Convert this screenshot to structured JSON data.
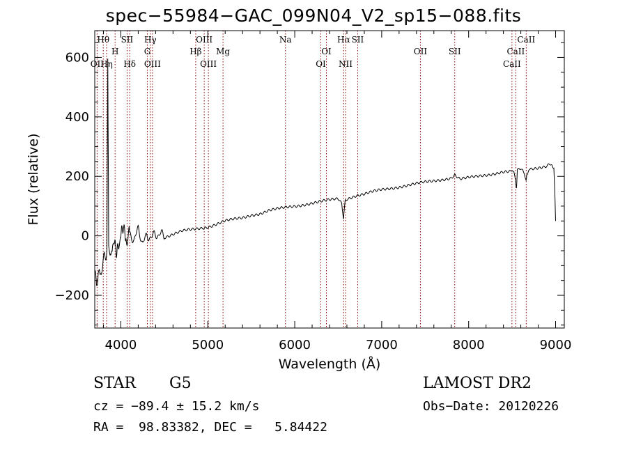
{
  "chart_data": {
    "type": "line",
    "title": "spec−55984−GAC_099N04_V2_sp15−088.fits",
    "xlabel": "Wavelength (Å)",
    "ylabel": "Flux (relative)",
    "xlim": [
      3700,
      9100
    ],
    "ylim": [
      -310,
      690
    ],
    "xticks": [
      4000,
      5000,
      6000,
      7000,
      8000,
      9000
    ],
    "yticks": [
      -200,
      0,
      200,
      400,
      600
    ],
    "xtick_labels": [
      "4000",
      "5000",
      "6000",
      "7000",
      "8000",
      "9000"
    ],
    "ytick_labels": [
      "−200",
      "0",
      "200",
      "400",
      "600"
    ],
    "grid": false,
    "legend": "none",
    "series": [
      {
        "x": [
          3700,
          3720,
          3740,
          3760,
          3780,
          3800,
          3820,
          3840,
          3850,
          3860,
          3880,
          3900,
          3920,
          3950,
          3980,
          4000,
          4030,
          4060,
          4100,
          4150,
          4200,
          4250,
          4300,
          4350,
          4400,
          4450,
          4500,
          4600,
          4700,
          4800,
          4900,
          5000,
          5100,
          5200,
          5300,
          5400,
          5500,
          5600,
          5700,
          5800,
          5900,
          6000,
          6100,
          6200,
          6300,
          6400,
          6500,
          6540,
          6560,
          6580,
          6600,
          6700,
          6800,
          6900,
          7000,
          7100,
          7200,
          7300,
          7400,
          7500,
          7600,
          7700,
          7800,
          7840,
          7900,
          8000,
          8100,
          8200,
          8300,
          8400,
          8480,
          8500,
          8520,
          8540,
          8550,
          8560,
          8600,
          8640,
          8660,
          8670,
          8700,
          8800,
          8900,
          8950,
          8980,
          8990,
          9000
        ],
        "y": [
          -150,
          -180,
          -120,
          -160,
          -100,
          -90,
          -60,
          -30,
          630,
          -40,
          -20,
          -60,
          10,
          -30,
          0,
          -20,
          10,
          -10,
          0,
          -10,
          20,
          -20,
          -5,
          0,
          0,
          10,
          -5,
          5,
          15,
          20,
          25,
          30,
          40,
          50,
          55,
          60,
          70,
          75,
          85,
          90,
          95,
          100,
          105,
          110,
          115,
          120,
          125,
          110,
          60,
          120,
          125,
          135,
          140,
          148,
          155,
          160,
          165,
          170,
          175,
          180,
          185,
          190,
          195,
          205,
          190,
          195,
          200,
          205,
          210,
          215,
          215,
          220,
          210,
          185,
          155,
          220,
          225,
          210,
          185,
          210,
          225,
          230,
          235,
          240,
          230,
          150,
          50
        ]
      }
    ],
    "spectral_lines": [
      {
        "name": "Hθ",
        "wave": 3798,
        "row": 0
      },
      {
        "name": "OII",
        "wave": 3727,
        "row": 2
      },
      {
        "name": "Hη",
        "wave": 3836,
        "row": 2
      },
      {
        "name": "H",
        "wave": 3934,
        "row": 1
      },
      {
        "name": "SII",
        "wave": 4072,
        "row": 0
      },
      {
        "name": "Hδ",
        "wave": 4102,
        "row": 2
      },
      {
        "name": "Hγ",
        "wave": 4340,
        "row": 0
      },
      {
        "name": "G",
        "wave": 4305,
        "row": 1
      },
      {
        "name": "OIII",
        "wave": 4364,
        "row": 2
      },
      {
        "name": "OIII",
        "wave": 4959,
        "row": 0
      },
      {
        "name": "Hβ",
        "wave": 4861,
        "row": 1
      },
      {
        "name": "Mg",
        "wave": 5175,
        "row": 1
      },
      {
        "name": "OIII",
        "wave": 5007,
        "row": 2
      },
      {
        "name": "Na",
        "wave": 5893,
        "row": 0
      },
      {
        "name": "OI",
        "wave": 6364,
        "row": 1
      },
      {
        "name": "OI",
        "wave": 6300,
        "row": 2
      },
      {
        "name": "Hα",
        "wave": 6563,
        "row": 0
      },
      {
        "name": "SII",
        "wave": 6724,
        "row": 0
      },
      {
        "name": "NII",
        "wave": 6584,
        "row": 2
      },
      {
        "name": "OII",
        "wave": 7445,
        "row": 1
      },
      {
        "name": "SII",
        "wave": 7840,
        "row": 1
      },
      {
        "name": "CaII",
        "wave": 8662,
        "row": 0
      },
      {
        "name": "CaII",
        "wave": 8542,
        "row": 1
      },
      {
        "name": "CaII",
        "wave": 8498,
        "row": 2
      }
    ],
    "line_color": "#8b0000"
  },
  "info": {
    "object_class": "STAR",
    "subclass": "G5",
    "survey": "LAMOST DR2",
    "cz": "cz = −89.4 ± 15.2 km/s",
    "obs_date": "Obs−Date: 20120226",
    "coords": "RA =  98.83382, DEC =   5.84422"
  }
}
